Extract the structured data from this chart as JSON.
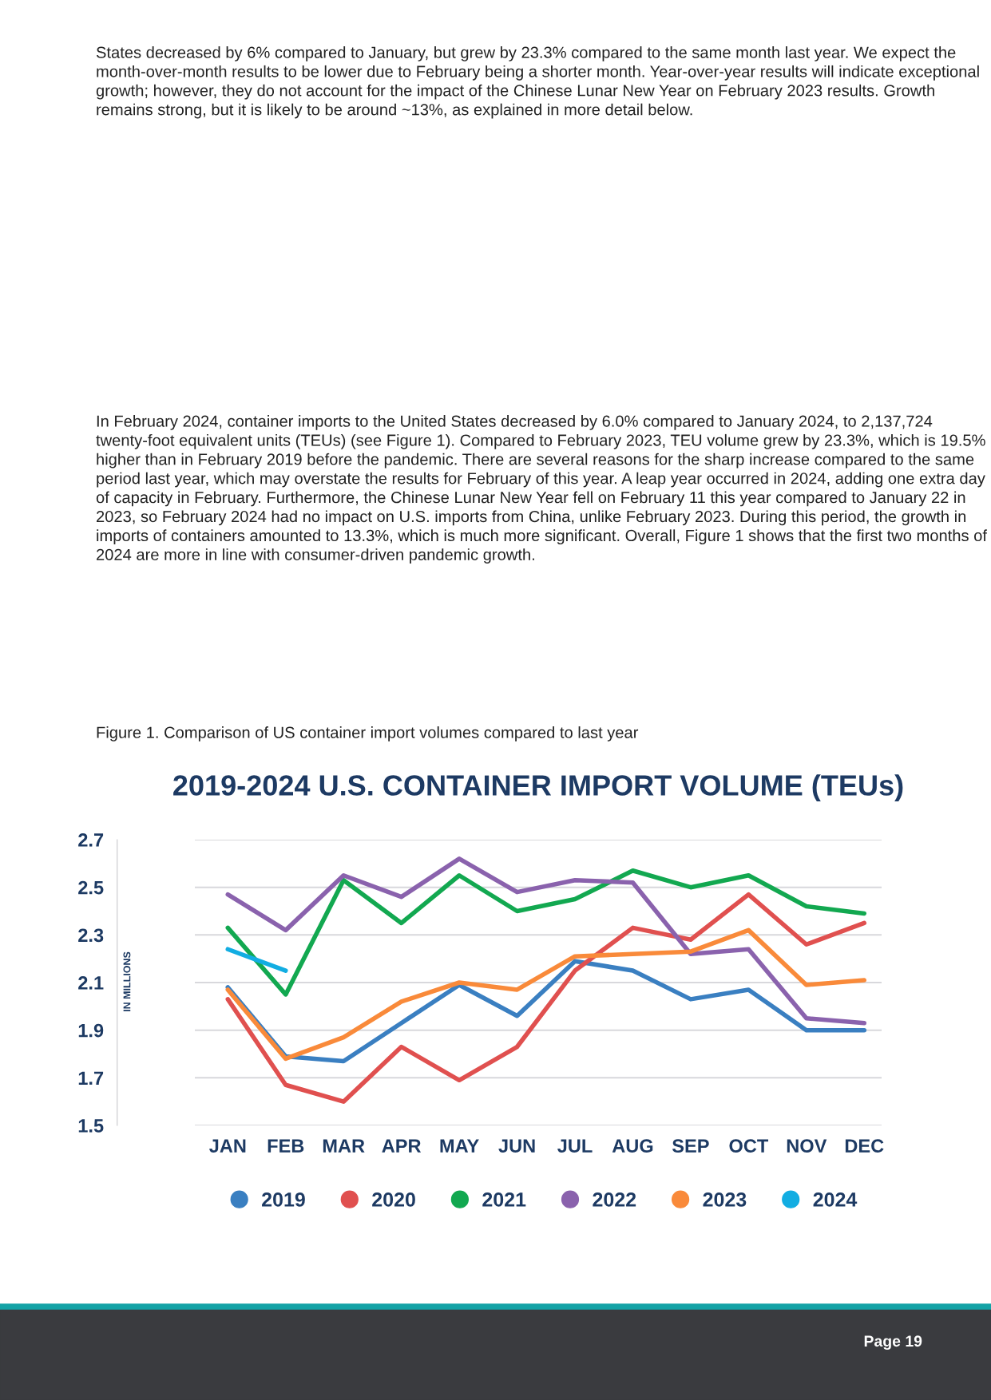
{
  "chart_data": {
    "type": "line",
    "title": "2019-2024 U.S. CONTAINER IMPORT VOLUME (TEUs)",
    "ylabel": "IN MILLIONS",
    "categories": [
      "JAN",
      "FEB",
      "MAR",
      "APR",
      "MAY",
      "JUN",
      "JUL",
      "AUG",
      "SEP",
      "OCT",
      "NOV",
      "DEC"
    ],
    "series": [
      {
        "name": "2019",
        "color": "#3a7fc1",
        "values": [
          2.08,
          1.79,
          1.77,
          1.93,
          2.09,
          1.96,
          2.19,
          2.15,
          2.03,
          2.07,
          1.9,
          1.9
        ]
      },
      {
        "name": "2020",
        "color": "#e0504f",
        "values": [
          2.03,
          1.67,
          1.6,
          1.83,
          1.69,
          1.83,
          2.15,
          2.33,
          2.28,
          2.47,
          2.26,
          2.35
        ]
      },
      {
        "name": "2021",
        "color": "#12a850",
        "values": [
          2.33,
          2.05,
          2.53,
          2.35,
          2.55,
          2.4,
          2.45,
          2.57,
          2.5,
          2.55,
          2.42,
          2.39
        ]
      },
      {
        "name": "2022",
        "color": "#8a62ad",
        "values": [
          2.47,
          2.32,
          2.55,
          2.46,
          2.62,
          2.48,
          2.53,
          2.52,
          2.22,
          2.24,
          1.95,
          1.93
        ]
      },
      {
        "name": "2023",
        "color": "#f98a3a",
        "values": [
          2.07,
          1.78,
          1.87,
          2.02,
          2.1,
          2.07,
          2.21,
          2.22,
          2.23,
          2.32,
          2.09,
          2.11
        ]
      },
      {
        "name": "2024",
        "color": "#12ade2",
        "values": [
          2.24,
          2.15,
          null,
          null,
          null,
          null,
          null,
          null,
          null,
          null,
          null,
          null
        ]
      }
    ],
    "ylim": [
      1.5,
      2.7
    ],
    "yticks": [
      1.5,
      1.7,
      1.9,
      2.1,
      2.3,
      2.5,
      2.7
    ],
    "grid": "y",
    "legend": "bottom",
    "marker": "none",
    "line_style": "solid",
    "annotations": [
      "States decreased by 6% compared to January, but grew by 23.3% compared to the same month last year. We expect the month-over-month results to be lower due to February being a shorter month. Year-over-year results will indicate exceptional growth; however, they do not account for the impact of the Chinese Lunar New Year on February 2023 results. Growth remains strong, but it is likely to be around ~13%, as explained in more detail below.",
      "In February 2024, container imports to the United States decreased by 6.0% compared to January 2024, to 2,137,724 twenty-foot equivalent units (TEUs) (see Figure 1). Compared to February 2023, TEU volume grew by 23.3%, which is 19.5% higher than in February 2019 before the pandemic. There are several reasons for the sharp increase compared to the same period last year, which may overstate the results for February of this year. A leap year occurred in 2024, adding one extra day of capacity in February. Furthermore, the Chinese Lunar New Year fell on February 11 this year compared to January 22 in 2023, so February 2024 had no impact on U.S. imports from China, unlike February 2023. During this period, the growth in imports of containers amounted to 13.3%, which is much more significant. Overall, Figure 1 shows that the first two months of 2024 are more in line with consumer-driven pandemic growth.",
      "Figure 1. Comparison of US container import volumes compared to last year",
      "Page 19"
    ]
  }
}
